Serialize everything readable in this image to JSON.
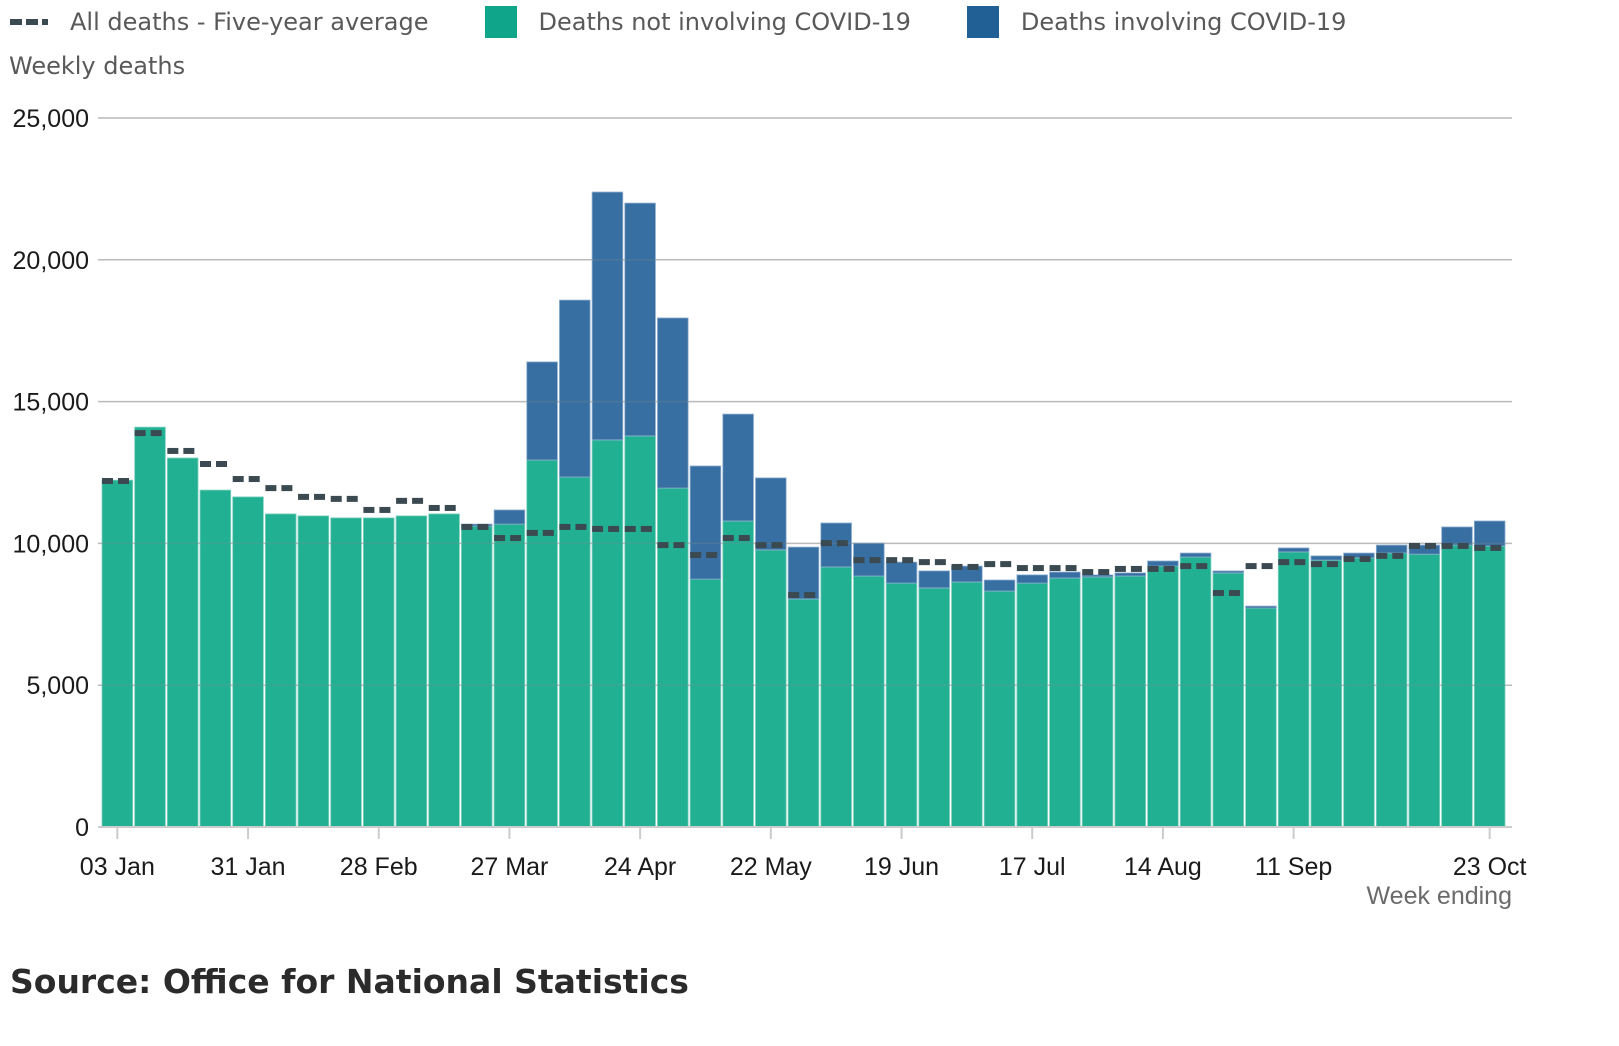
{
  "legend": {
    "avg_label": "All deaths - Five-year average",
    "noncovid_label": "Deaths not involving COVID-19",
    "covid_label": "Deaths involving COVID-19"
  },
  "source_label": "Source: Office for National Statistics",
  "colors": {
    "noncovid": "#22b093",
    "covid": "#386fa2",
    "avg": "#3b4a51",
    "grid": "#cccccc",
    "legend_noncovid": "#0ea58a",
    "legend_covid": "#206095"
  },
  "chart_data": {
    "type": "bar",
    "stacked": true,
    "title": "",
    "ylabel": "Weekly deaths",
    "xlabel": "Week ending",
    "ylim": [
      0,
      25000
    ],
    "yticks": [
      0,
      5000,
      10000,
      15000,
      20000,
      25000
    ],
    "ytick_labels": [
      "0",
      "5,000",
      "10,000",
      "15,000",
      "20,000",
      "25,000"
    ],
    "grid": true,
    "legend_position": "top-left",
    "xtick_labels": [
      {
        "index": 0,
        "label": "03 Jan"
      },
      {
        "index": 4,
        "label": "31 Jan"
      },
      {
        "index": 8,
        "label": "28 Feb"
      },
      {
        "index": 12,
        "label": "27 Mar"
      },
      {
        "index": 16,
        "label": "24 Apr"
      },
      {
        "index": 20,
        "label": "22 May"
      },
      {
        "index": 24,
        "label": "19 Jun"
      },
      {
        "index": 28,
        "label": "17 Jul"
      },
      {
        "index": 32,
        "label": "14 Aug"
      },
      {
        "index": 36,
        "label": "11 Sep"
      },
      {
        "index": 42,
        "label": "23 Oct"
      }
    ],
    "categories": [
      "03 Jan",
      "10 Jan",
      "17 Jan",
      "24 Jan",
      "31 Jan",
      "07 Feb",
      "14 Feb",
      "21 Feb",
      "28 Feb",
      "06 Mar",
      "13 Mar",
      "20 Mar",
      "27 Mar",
      "03 Apr",
      "10 Apr",
      "17 Apr",
      "24 Apr",
      "01 May",
      "08 May",
      "15 May",
      "22 May",
      "29 May",
      "05 Jun",
      "12 Jun",
      "19 Jun",
      "26 Jun",
      "03 Jul",
      "10 Jul",
      "17 Jul",
      "24 Jul",
      "31 Jul",
      "07 Aug",
      "14 Aug",
      "21 Aug",
      "28 Aug",
      "04 Sep",
      "11 Sep",
      "18 Sep",
      "25 Sep",
      "02 Oct",
      "09 Oct",
      "16 Oct",
      "23 Oct"
    ],
    "series": [
      {
        "name": "Deaths not involving COVID-19",
        "kind": "bar",
        "values": [
          12230,
          14100,
          13010,
          11880,
          11640,
          11040,
          10970,
          10900,
          10900,
          10970,
          11040,
          10610,
          10680,
          12940,
          12340,
          13650,
          13790,
          11950,
          8740,
          10790,
          9770,
          8040,
          9170,
          8850,
          8600,
          8430,
          8640,
          8320,
          8600,
          8780,
          8820,
          8850,
          9200,
          9520,
          8960,
          7720,
          9700,
          9410,
          9490,
          9660,
          9620,
          9940,
          9910
        ]
      },
      {
        "name": "Deaths involving COVID-19",
        "kind": "bar",
        "values": [
          0,
          0,
          0,
          0,
          0,
          0,
          0,
          0,
          0,
          0,
          0,
          70,
          500,
          3460,
          6240,
          8740,
          8210,
          6000,
          3990,
          3770,
          2540,
          1830,
          1550,
          1160,
          740,
          600,
          560,
          390,
          290,
          210,
          70,
          110,
          180,
          140,
          70,
          70,
          140,
          150,
          170,
          280,
          320,
          640,
          880
        ]
      },
      {
        "name": "All deaths - Five-year average",
        "kind": "dashed-marker",
        "values": [
          12200,
          13890,
          13260,
          12800,
          12270,
          11950,
          11640,
          11570,
          11180,
          11500,
          11250,
          10580,
          10190,
          10370,
          10580,
          10510,
          10510,
          9940,
          9590,
          10190,
          9940,
          8180,
          10010,
          9410,
          9410,
          9340,
          9170,
          9270,
          9130,
          9130,
          8990,
          9100,
          9100,
          9200,
          8250,
          9200,
          9340,
          9270,
          9450,
          9560,
          9910,
          9910,
          9840
        ]
      }
    ]
  }
}
